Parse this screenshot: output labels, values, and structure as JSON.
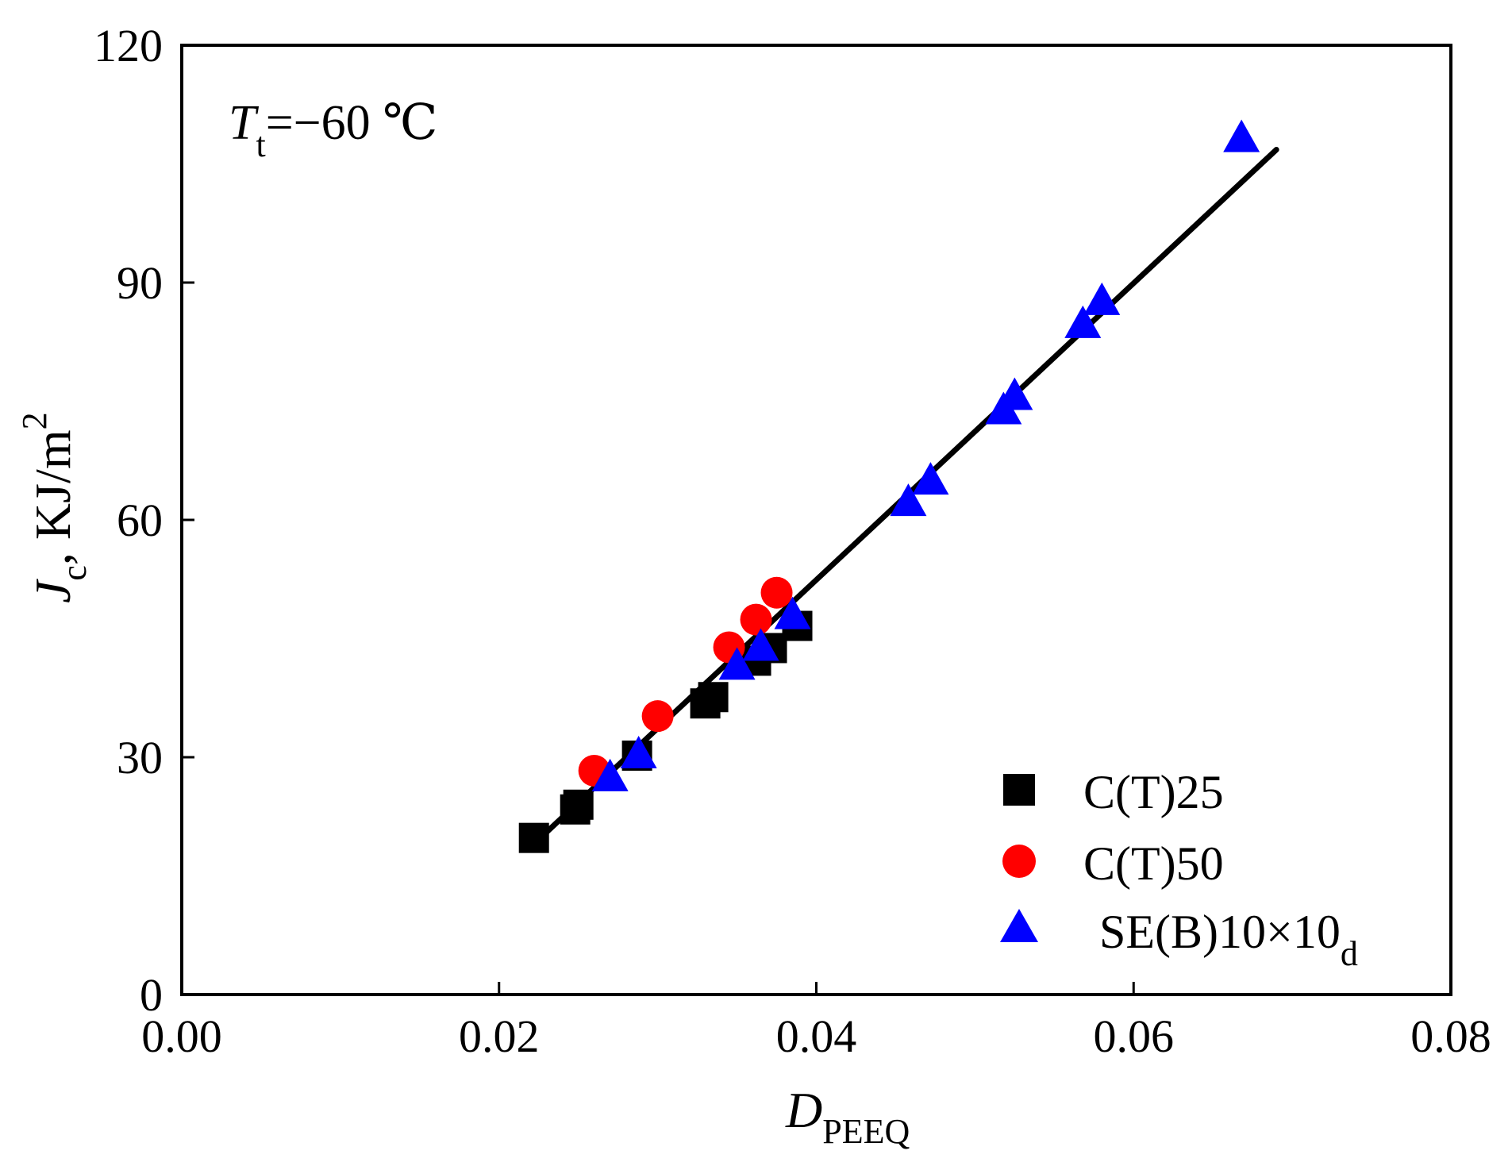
{
  "chart_data": {
    "type": "scatter",
    "annotation": {
      "symbol": "T",
      "subscript": "t",
      "text": "=−60 ℃"
    },
    "xlabel": {
      "symbol": "D",
      "subscript": "PEEQ"
    },
    "ylabel": {
      "symbol": "J",
      "subscript": "c",
      "unit": ", KJ/m",
      "superscript": "2"
    },
    "xlim": [
      0,
      0.08
    ],
    "ylim": [
      0,
      120
    ],
    "xticks": [
      "0.00",
      "0.02",
      "0.04",
      "0.06",
      "0.08"
    ],
    "xtick_values": [
      0,
      0.02,
      0.04,
      0.06,
      0.08
    ],
    "yticks": [
      "0",
      "30",
      "60",
      "90",
      "120"
    ],
    "ytick_values": [
      0,
      30,
      60,
      90,
      120
    ],
    "grid": false,
    "legend_position": "bottom-right",
    "series": [
      {
        "name": "C(T)25",
        "marker": "square",
        "color": "#000000",
        "points": [
          [
            0.0222,
            19.8
          ],
          [
            0.0248,
            23.4
          ],
          [
            0.025,
            24.0
          ],
          [
            0.0287,
            30.2
          ],
          [
            0.033,
            36.8
          ],
          [
            0.0335,
            37.6
          ],
          [
            0.0362,
            42.2
          ],
          [
            0.0372,
            43.8
          ],
          [
            0.0388,
            46.6
          ]
        ]
      },
      {
        "name": "C(T)50",
        "marker": "circle",
        "color": "#ff0000",
        "points": [
          [
            0.026,
            28.3
          ],
          [
            0.03,
            35.2
          ],
          [
            0.0345,
            43.9
          ],
          [
            0.0362,
            47.4
          ],
          [
            0.0375,
            50.8
          ]
        ]
      },
      {
        "name": "SE(B)10×10",
        "name_subscript": "d",
        "marker": "triangle",
        "color": "#0000ff",
        "points": [
          [
            0.027,
            27.4
          ],
          [
            0.0288,
            30.3
          ],
          [
            0.035,
            41.5
          ],
          [
            0.0365,
            43.9
          ],
          [
            0.0385,
            47.9
          ],
          [
            0.0458,
            62.2
          ],
          [
            0.0472,
            64.9
          ],
          [
            0.0518,
            73.8
          ],
          [
            0.0525,
            75.6
          ],
          [
            0.0568,
            84.7
          ],
          [
            0.058,
            87.6
          ],
          [
            0.0668,
            108.2
          ]
        ]
      }
    ],
    "fit_line": {
      "x": [
        0.0225,
        0.069
      ],
      "y": [
        19.6,
        106.8
      ]
    }
  }
}
